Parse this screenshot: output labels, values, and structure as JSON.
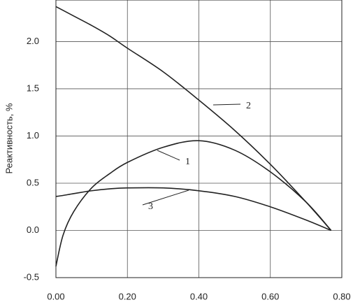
{
  "chart_data": {
    "type": "line",
    "y_label": "Реактивность, %",
    "x": [
      0,
      0.02,
      0.05,
      0.1,
      0.15,
      0.2,
      0.3,
      0.4,
      0.5,
      0.6,
      0.7,
      0.77
    ],
    "series": [
      {
        "name": "1",
        "color": "#222222",
        "values": [
          -0.38,
          -0.05,
          0.2,
          0.45,
          0.6,
          0.72,
          0.88,
          0.95,
          0.85,
          0.62,
          0.3,
          0
        ]
      },
      {
        "name": "2",
        "color": "#222222",
        "values": [
          2.37,
          2.33,
          2.27,
          2.17,
          2.06,
          1.93,
          1.68,
          1.38,
          1.06,
          0.7,
          0.3,
          0
        ]
      },
      {
        "name": "3",
        "color": "#222222",
        "values": [
          0.36,
          0.37,
          0.39,
          0.42,
          0.44,
          0.45,
          0.45,
          0.42,
          0.36,
          0.25,
          0.11,
          0
        ]
      }
    ],
    "xlim": [
      0,
      0.8
    ],
    "xticks": [
      {
        "value": 0,
        "label": "0.00"
      },
      {
        "value": 0.2,
        "label": "0.20"
      },
      {
        "value": 0.4,
        "label": "0.40"
      },
      {
        "value": 0.6,
        "label": "0.60"
      },
      {
        "value": 0.8,
        "label": "0.80"
      }
    ],
    "ylim": [
      -0.5,
      2.44
    ],
    "yticks": [
      {
        "value": -0.5,
        "label": "-0.5"
      },
      {
        "value": 0,
        "label": "0.0"
      },
      {
        "value": 0.5,
        "label": "0.5"
      },
      {
        "value": 1,
        "label": "1.0"
      },
      {
        "value": 1.5,
        "label": "1.5"
      },
      {
        "value": 2,
        "label": "2.0"
      }
    ],
    "grid": true
  }
}
